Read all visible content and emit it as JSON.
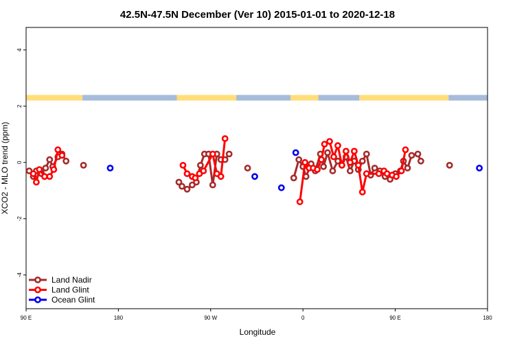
{
  "chart_data": {
    "type": "line",
    "title": "42.5N-47.5N December (Ver 10)   2015-01-01 to 2020-12-18",
    "xlabel": "Longitude",
    "ylabel": "XCO2 - MLO trend (ppm)",
    "xlim": [
      0,
      450
    ],
    "ylim": [
      -5.2,
      4.8
    ],
    "x_ticks": [
      {
        "value": 0,
        "label": "90 E"
      },
      {
        "value": 90,
        "label": "180"
      },
      {
        "value": 180,
        "label": "90 W"
      },
      {
        "value": 270,
        "label": "0"
      },
      {
        "value": 360,
        "label": "90 E"
      },
      {
        "value": 450,
        "label": "180"
      }
    ],
    "y_ticks": [
      {
        "value": -4,
        "label": "-4"
      },
      {
        "value": -2,
        "label": "-2"
      },
      {
        "value": 0,
        "label": "0"
      },
      {
        "value": 2,
        "label": "2"
      },
      {
        "value": 4,
        "label": "4"
      }
    ],
    "grid": false,
    "legend_position": "bottom-left",
    "land_ocean_strip": {
      "y_range": [
        2.2,
        2.4
      ],
      "land_color": "#FFDE7A",
      "ocean_color": "#A7BCDA",
      "segments": [
        {
          "from": 0,
          "to": 55,
          "type": "land"
        },
        {
          "from": 55,
          "to": 147,
          "type": "ocean"
        },
        {
          "from": 147,
          "to": 205,
          "type": "land"
        },
        {
          "from": 205,
          "to": 258,
          "type": "ocean"
        },
        {
          "from": 258,
          "to": 285,
          "type": "land"
        },
        {
          "from": 285,
          "to": 325,
          "type": "ocean"
        },
        {
          "from": 325,
          "to": 412,
          "type": "land"
        },
        {
          "from": 412,
          "to": 450,
          "type": "ocean"
        }
      ]
    },
    "series": [
      {
        "name": "Land Nadir",
        "color": "#A52A2A",
        "segments": [
          [
            [
              3,
              -0.3
            ],
            [
              7,
              -0.5
            ],
            [
              10,
              -0.3
            ],
            [
              15,
              -0.4
            ],
            [
              19,
              -0.2
            ],
            [
              23,
              0.1
            ],
            [
              26,
              -0.15
            ],
            [
              31,
              0.2
            ],
            [
              35,
              0.3
            ],
            [
              39,
              0.05
            ]
          ],
          [
            [
              56,
              -0.1
            ]
          ],
          [
            [
              149,
              -0.7
            ],
            [
              152,
              -0.85
            ],
            [
              157,
              -0.95
            ],
            [
              162,
              -0.8
            ],
            [
              166,
              -0.7
            ],
            [
              170,
              -0.1
            ],
            [
              174,
              0.3
            ],
            [
              178,
              0.3
            ],
            [
              182,
              -0.8
            ],
            [
              186,
              0.3
            ],
            [
              190,
              0.1
            ],
            [
              194,
              0.1
            ],
            [
              198,
              0.3
            ]
          ],
          [
            [
              216,
              -0.2
            ]
          ],
          [
            [
              261,
              -0.55
            ],
            [
              266,
              0.1
            ],
            [
              270,
              -0.15
            ],
            [
              273,
              -0.5
            ],
            [
              278,
              -0.05
            ],
            [
              282,
              -0.3
            ],
            [
              287,
              0.3
            ],
            [
              290,
              -0.15
            ],
            [
              294,
              0.35
            ],
            [
              299,
              -0.3
            ],
            [
              304,
              0.05
            ],
            [
              308,
              -0.1
            ],
            [
              312,
              0.2
            ],
            [
              316,
              -0.3
            ],
            [
              320,
              0.05
            ],
            [
              324,
              -0.25
            ],
            [
              328,
              0.05
            ],
            [
              332,
              0.3
            ],
            [
              336,
              -0.45
            ],
            [
              340,
              -0.2
            ],
            [
              345,
              -0.3
            ],
            [
              350,
              -0.5
            ],
            [
              355,
              -0.6
            ],
            [
              360,
              -0.4
            ],
            [
              365,
              -0.3
            ],
            [
              368,
              0.05
            ],
            [
              372,
              -0.2
            ],
            [
              376,
              0.25
            ],
            [
              382,
              0.3
            ],
            [
              385,
              0.05
            ]
          ],
          [
            [
              413,
              -0.1
            ]
          ]
        ]
      },
      {
        "name": "Land Glint",
        "color": "#FF0000",
        "segments": [
          [
            [
              7,
              -0.4
            ],
            [
              10,
              -0.7
            ],
            [
              13,
              -0.25
            ],
            [
              18,
              -0.5
            ],
            [
              23,
              -0.5
            ],
            [
              27,
              -0.25
            ],
            [
              31,
              0.45
            ],
            [
              35,
              0.25
            ]
          ],
          [
            [
              153,
              -0.1
            ],
            [
              157,
              -0.4
            ],
            [
              162,
              -0.5
            ],
            [
              165,
              -0.55
            ],
            [
              169,
              -0.4
            ],
            [
              173,
              -0.3
            ],
            [
              182,
              0.3
            ],
            [
              186,
              -0.4
            ],
            [
              190,
              -0.5
            ],
            [
              194,
              0.85
            ]
          ],
          [
            [
              267,
              -1.4
            ],
            [
              272,
              0.0
            ],
            [
              276,
              -0.2
            ],
            [
              280,
              -0.2
            ],
            [
              284,
              -0.25
            ],
            [
              288,
              0.1
            ],
            [
              291,
              0.65
            ],
            [
              296,
              0.75
            ],
            [
              300,
              0.2
            ],
            [
              304,
              0.6
            ],
            [
              308,
              -0.1
            ],
            [
              312,
              0.4
            ],
            [
              316,
              0.0
            ],
            [
              320,
              0.4
            ],
            [
              324,
              -0.1
            ],
            [
              328,
              -1.05
            ],
            [
              332,
              -0.4
            ],
            [
              344,
              -0.4
            ],
            [
              349,
              -0.3
            ],
            [
              352,
              -0.4
            ],
            [
              357,
              -0.45
            ],
            [
              361,
              -0.5
            ],
            [
              366,
              -0.3
            ],
            [
              370,
              0.45
            ]
          ]
        ]
      },
      {
        "name": "Ocean Glint",
        "color": "#0000EE",
        "segments": [
          [
            [
              82,
              -0.2
            ]
          ],
          [
            [
              223,
              -0.5
            ]
          ],
          [
            [
              249,
              -0.9
            ]
          ],
          [
            [
              263,
              0.35
            ]
          ],
          [
            [
              442,
              -0.2
            ]
          ]
        ]
      }
    ]
  }
}
